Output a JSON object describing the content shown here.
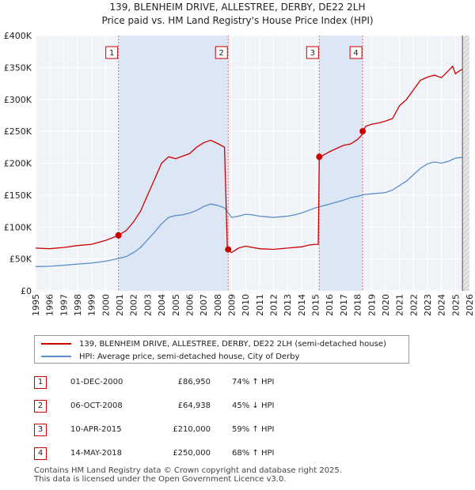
{
  "chart_data": {
    "type": "line",
    "title": "139, BLENHEIM DRIVE, ALLESTREE, DERBY, DE22 2LH",
    "subtitle": "Price paid vs. HM Land Registry's House Price Index (HPI)",
    "xlim": [
      1995,
      2026
    ],
    "ylim": [
      0,
      400000
    ],
    "x_ticks": [
      "1995",
      "1996",
      "1997",
      "1998",
      "1999",
      "2000",
      "2001",
      "2002",
      "2003",
      "2004",
      "2005",
      "2006",
      "2007",
      "2008",
      "2009",
      "2010",
      "2011",
      "2012",
      "2013",
      "2014",
      "2015",
      "2016",
      "2017",
      "2018",
      "2019",
      "2020",
      "2021",
      "2022",
      "2023",
      "2024",
      "2025",
      "2026"
    ],
    "y_ticks": [
      {
        "value": 0,
        "label": "£0"
      },
      {
        "value": 50000,
        "label": "£50K"
      },
      {
        "value": 100000,
        "label": "£100K"
      },
      {
        "value": 150000,
        "label": "£150K"
      },
      {
        "value": 200000,
        "label": "£200K"
      },
      {
        "value": 250000,
        "label": "£250K"
      },
      {
        "value": 300000,
        "label": "£300K"
      },
      {
        "value": 350000,
        "label": "£350K"
      },
      {
        "value": 400000,
        "label": "£400K"
      }
    ],
    "series": [
      {
        "name": "139, BLENHEIM DRIVE, ALLESTREE, DERBY, DE22 2LH (semi-detached house)",
        "color": "#cc0000",
        "points": [
          [
            1995.0,
            67000
          ],
          [
            1996.0,
            66000
          ],
          [
            1997.0,
            68000
          ],
          [
            1998.0,
            71000
          ],
          [
            1999.0,
            73000
          ],
          [
            2000.0,
            79000
          ],
          [
            2000.92,
            86950
          ],
          [
            2001.5,
            95000
          ],
          [
            2002.0,
            108000
          ],
          [
            2002.5,
            125000
          ],
          [
            2003.0,
            150000
          ],
          [
            2003.5,
            175000
          ],
          [
            2004.0,
            200000
          ],
          [
            2004.5,
            210000
          ],
          [
            2005.0,
            207000
          ],
          [
            2005.5,
            211000
          ],
          [
            2006.0,
            215000
          ],
          [
            2006.5,
            225000
          ],
          [
            2007.0,
            232000
          ],
          [
            2007.5,
            236000
          ],
          [
            2008.0,
            231000
          ],
          [
            2008.5,
            225000
          ],
          [
            2008.7,
            65000
          ],
          [
            2008.76,
            64938
          ],
          [
            2009.0,
            60000
          ],
          [
            2009.5,
            67000
          ],
          [
            2010.0,
            70000
          ],
          [
            2011.0,
            66000
          ],
          [
            2012.0,
            65000
          ],
          [
            2013.0,
            67000
          ],
          [
            2014.0,
            69000
          ],
          [
            2014.6,
            72000
          ],
          [
            2015.0,
            73000
          ],
          [
            2015.2,
            73000
          ],
          [
            2015.27,
            210000
          ],
          [
            2015.5,
            212000
          ],
          [
            2016.0,
            218000
          ],
          [
            2016.5,
            223000
          ],
          [
            2017.0,
            228000
          ],
          [
            2017.5,
            230000
          ],
          [
            2018.0,
            237000
          ],
          [
            2018.3,
            244000
          ],
          [
            2018.37,
            250000
          ],
          [
            2018.6,
            258000
          ],
          [
            2019.0,
            261000
          ],
          [
            2019.5,
            263000
          ],
          [
            2020.0,
            266000
          ],
          [
            2020.5,
            270000
          ],
          [
            2021.0,
            290000
          ],
          [
            2021.5,
            300000
          ],
          [
            2022.0,
            315000
          ],
          [
            2022.5,
            330000
          ],
          [
            2023.0,
            335000
          ],
          [
            2023.5,
            338000
          ],
          [
            2024.0,
            334000
          ],
          [
            2024.5,
            345000
          ],
          [
            2024.8,
            352000
          ],
          [
            2025.0,
            340000
          ],
          [
            2025.3,
            345000
          ],
          [
            2025.5,
            347000
          ]
        ]
      },
      {
        "name": "HPI: Average price, semi-detached house, City of Derby",
        "color": "#5b8dc9",
        "points": [
          [
            1995.0,
            38000
          ],
          [
            1996.0,
            38500
          ],
          [
            1997.0,
            40000
          ],
          [
            1998.0,
            42000
          ],
          [
            1999.0,
            43500
          ],
          [
            2000.0,
            46500
          ],
          [
            2001.0,
            51000
          ],
          [
            2001.5,
            54000
          ],
          [
            2002.0,
            60000
          ],
          [
            2002.5,
            68000
          ],
          [
            2003.0,
            80000
          ],
          [
            2003.5,
            92000
          ],
          [
            2004.0,
            105000
          ],
          [
            2004.5,
            115000
          ],
          [
            2005.0,
            118000
          ],
          [
            2005.5,
            119000
          ],
          [
            2006.0,
            122000
          ],
          [
            2006.5,
            126000
          ],
          [
            2007.0,
            132000
          ],
          [
            2007.5,
            136000
          ],
          [
            2008.0,
            134000
          ],
          [
            2008.5,
            130000
          ],
          [
            2009.0,
            115000
          ],
          [
            2009.5,
            117000
          ],
          [
            2010.0,
            120000
          ],
          [
            2010.5,
            119000
          ],
          [
            2011.0,
            117000
          ],
          [
            2011.5,
            116000
          ],
          [
            2012.0,
            115000
          ],
          [
            2012.5,
            116000
          ],
          [
            2013.0,
            117000
          ],
          [
            2013.5,
            119000
          ],
          [
            2014.0,
            122000
          ],
          [
            2014.5,
            126000
          ],
          [
            2015.0,
            130000
          ],
          [
            2015.5,
            133000
          ],
          [
            2016.0,
            136000
          ],
          [
            2016.5,
            139000
          ],
          [
            2017.0,
            142000
          ],
          [
            2017.5,
            146000
          ],
          [
            2018.0,
            148000
          ],
          [
            2018.5,
            151000
          ],
          [
            2019.0,
            152000
          ],
          [
            2019.5,
            153000
          ],
          [
            2020.0,
            154000
          ],
          [
            2020.5,
            158000
          ],
          [
            2021.0,
            165000
          ],
          [
            2021.5,
            172000
          ],
          [
            2022.0,
            182000
          ],
          [
            2022.5,
            192000
          ],
          [
            2023.0,
            199000
          ],
          [
            2023.5,
            202000
          ],
          [
            2024.0,
            200000
          ],
          [
            2024.5,
            203000
          ],
          [
            2025.0,
            208000
          ],
          [
            2025.5,
            209000
          ]
        ]
      }
    ],
    "sales": [
      {
        "marker": "1",
        "x": 2000.92,
        "value": 86950
      },
      {
        "marker": "2",
        "x": 2008.76,
        "value": 64938
      },
      {
        "marker": "3",
        "x": 2015.27,
        "value": 210000
      },
      {
        "marker": "4",
        "x": 2018.37,
        "value": 250000
      }
    ],
    "shaded_spans": [
      [
        2000.92,
        2008.76
      ],
      [
        2015.27,
        2018.37
      ]
    ],
    "forecast_start": 2025.5
  },
  "legend": {
    "property": "139, BLENHEIM DRIVE, ALLESTREE, DERBY, DE22 2LH (semi-detached house)",
    "hpi": "HPI: Average price, semi-detached house, City of Derby",
    "property_color": "#cc0000",
    "hpi_color": "#5b8dc9"
  },
  "table": [
    {
      "num": "1",
      "date": "01-DEC-2000",
      "price": "£86,950",
      "hpi": "74% ↑ HPI"
    },
    {
      "num": "2",
      "date": "06-OCT-2008",
      "price": "£64,938",
      "hpi": "45% ↓ HPI"
    },
    {
      "num": "3",
      "date": "10-APR-2015",
      "price": "£210,000",
      "hpi": "59% ↑ HPI"
    },
    {
      "num": "4",
      "date": "14-MAY-2018",
      "price": "£250,000",
      "hpi": "68% ↑ HPI"
    }
  ],
  "footer": {
    "line1": "Contains HM Land Registry data © Crown copyright and database right 2025.",
    "line2": "This data is licensed under the Open Government Licence v3.0."
  }
}
